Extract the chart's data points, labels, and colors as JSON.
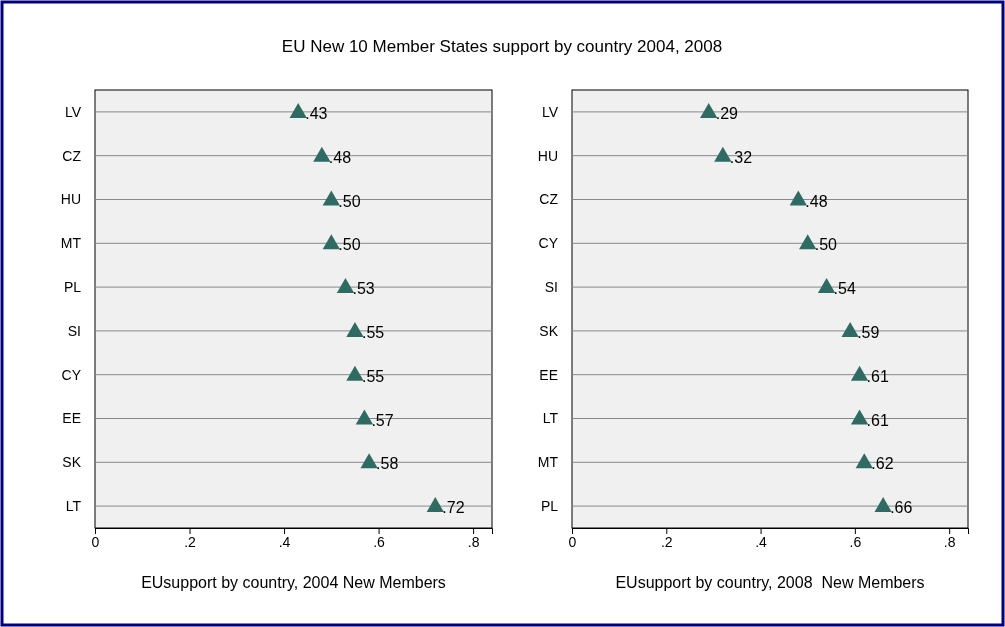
{
  "chart_data": [
    {
      "type": "scatter",
      "orientation": "horizontal",
      "title": "EU New 10 Member States support by country 2004, 2008",
      "xlabel": "EUsupport by country, 2004 New Members",
      "categories": [
        "LV",
        "CZ",
        "HU",
        "MT",
        "PL",
        "SI",
        "CY",
        "EE",
        "SK",
        "LT"
      ],
      "series": [
        {
          "color": "#2e6b63",
          "values": [
            0.43,
            0.48,
            0.5,
            0.5,
            0.53,
            0.55,
            0.55,
            0.57,
            0.58,
            0.72
          ],
          "value_labels": [
            ".43",
            ".48",
            ".50",
            ".50",
            ".53",
            ".55",
            ".55",
            ".57",
            ".58",
            ".72"
          ]
        }
      ],
      "xlim": [
        0,
        0.84
      ],
      "xticks": [
        0,
        {
          "value": 0.2,
          "label": ".2"
        },
        {
          "value": 0.4,
          "label": ".4"
        },
        {
          "value": 0.6,
          "label": ".6"
        },
        {
          "value": 0.8,
          "label": ".8"
        }
      ],
      "grid": "y",
      "marker": "triangle"
    },
    {
      "type": "scatter",
      "orientation": "horizontal",
      "xlabel": "EUsupport by country, 2008  New Members",
      "categories": [
        "LV",
        "HU",
        "CZ",
        "CY",
        "SI",
        "SK",
        "EE",
        "LT",
        "MT",
        "PL"
      ],
      "series": [
        {
          "color": "#2e6b63",
          "values": [
            0.29,
            0.32,
            0.48,
            0.5,
            0.54,
            0.59,
            0.61,
            0.61,
            0.62,
            0.66
          ],
          "value_labels": [
            ".29",
            ".32",
            ".48",
            ".50",
            ".54",
            ".59",
            ".61",
            ".61",
            ".62",
            ".66"
          ]
        }
      ],
      "xlim": [
        0,
        0.84
      ],
      "xticks": [
        0,
        {
          "value": 0.2,
          "label": ".2"
        },
        {
          "value": 0.4,
          "label": ".4"
        },
        {
          "value": 0.6,
          "label": ".6"
        },
        {
          "value": 0.8,
          "label": ".8"
        }
      ],
      "grid": "y",
      "marker": "triangle"
    }
  ]
}
